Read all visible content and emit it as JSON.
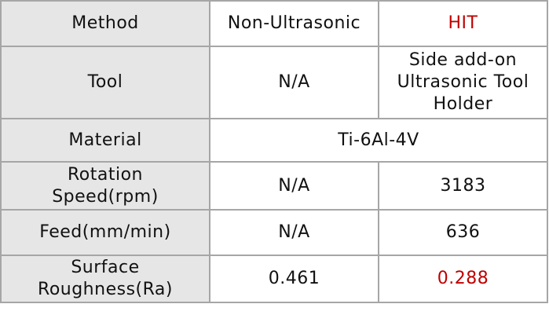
{
  "table": {
    "rows": [
      {
        "label": "Method",
        "cells": [
          "Non-Ultrasonic",
          "HIT"
        ]
      },
      {
        "label": "Tool",
        "cells": [
          "N/A",
          [
            "Side add-on",
            "Ultrasonic Tool",
            "Holder"
          ]
        ]
      },
      {
        "label": "Material",
        "cells": [
          "Ti-6Al-4V"
        ]
      },
      {
        "label": [
          "Rotation",
          "Speed(rpm)"
        ],
        "cells": [
          "N/A",
          "3183"
        ]
      },
      {
        "label": "Feed(mm/min)",
        "cells": [
          "N/A",
          "636"
        ]
      },
      {
        "label": [
          "Surface",
          "Roughness(Ra)"
        ],
        "cells": [
          "0.461",
          "0.288"
        ]
      }
    ]
  }
}
